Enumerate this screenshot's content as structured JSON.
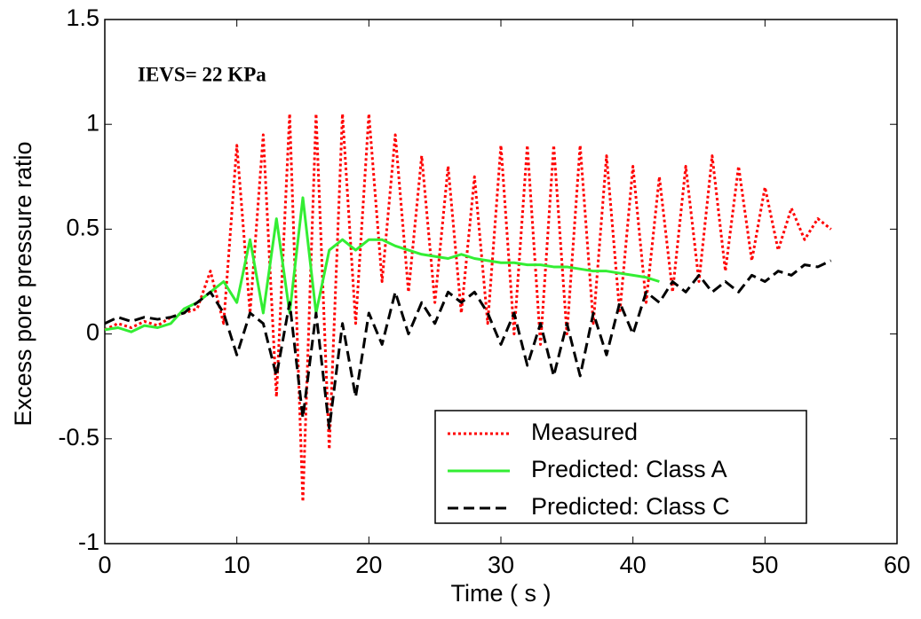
{
  "chart_data": {
    "type": "line",
    "annotation": "IEVS= 22 KPa",
    "x_label": "Time ( s )",
    "y_label": "Excess pore pressure ratio",
    "x": [
      0,
      1,
      2,
      3,
      4,
      5,
      6,
      7,
      8,
      9,
      10,
      11,
      12,
      13,
      14,
      15,
      16,
      17,
      18,
      19,
      20,
      21,
      22,
      23,
      24,
      25,
      26,
      27,
      28,
      29,
      30,
      31,
      32,
      33,
      34,
      35,
      36,
      37,
      38,
      39,
      40,
      41,
      42,
      43,
      44,
      45,
      46,
      47,
      48,
      49,
      50,
      51,
      52,
      53,
      54,
      55
    ],
    "series": [
      {
        "name": "Measured",
        "color": "#ff0000",
        "dash": "3,3",
        "values": [
          0.02,
          0.05,
          0.03,
          0.06,
          0.04,
          0.08,
          0.1,
          0.12,
          0.3,
          0.05,
          0.9,
          0.1,
          0.95,
          -0.3,
          1.05,
          -0.8,
          1.05,
          -0.55,
          1.05,
          0.05,
          1.05,
          0.25,
          0.95,
          0.2,
          0.85,
          0.15,
          0.8,
          0.1,
          0.75,
          0.05,
          0.9,
          0.0,
          0.9,
          -0.05,
          0.9,
          0.0,
          0.9,
          0.05,
          0.85,
          0.1,
          0.8,
          0.15,
          0.75,
          0.2,
          0.8,
          0.25,
          0.85,
          0.3,
          0.8,
          0.35,
          0.7,
          0.4,
          0.6,
          0.45,
          0.55,
          0.5
        ]
      },
      {
        "name": "Predicted: Class A",
        "color": "#33ee33",
        "dash": "none",
        "values": [
          0.02,
          0.03,
          0.01,
          0.04,
          0.03,
          0.05,
          0.12,
          0.15,
          0.2,
          0.25,
          0.15,
          0.45,
          0.1,
          0.55,
          0.1,
          0.65,
          0.1,
          0.4,
          0.45,
          0.4,
          0.45,
          0.45,
          0.42,
          0.4,
          0.38,
          0.37,
          0.36,
          0.38,
          0.36,
          0.35,
          0.34,
          0.34,
          0.33,
          0.33,
          0.32,
          0.32,
          0.31,
          0.3,
          0.3,
          0.29,
          0.28,
          0.27,
          0.25,
          null,
          null,
          null,
          null,
          null,
          null,
          null,
          null,
          null,
          null,
          null,
          null,
          null
        ]
      },
      {
        "name": "Predicted: Class C",
        "color": "#000000",
        "dash": "12,6",
        "values": [
          0.05,
          0.08,
          0.06,
          0.08,
          0.07,
          0.08,
          0.1,
          0.15,
          0.2,
          0.1,
          -0.1,
          0.1,
          0.05,
          -0.2,
          0.15,
          -0.4,
          0.1,
          -0.45,
          0.05,
          -0.3,
          0.1,
          -0.05,
          0.2,
          0.0,
          0.15,
          0.05,
          0.2,
          0.15,
          0.2,
          0.1,
          -0.05,
          0.1,
          -0.15,
          0.05,
          -0.2,
          0.05,
          -0.2,
          0.1,
          -0.1,
          0.15,
          0.0,
          0.2,
          0.15,
          0.25,
          0.2,
          0.28,
          0.2,
          0.25,
          0.2,
          0.28,
          0.25,
          0.3,
          0.28,
          0.33,
          0.32,
          0.35
        ]
      }
    ],
    "xlim": [
      0,
      60
    ],
    "xticks": [
      0,
      10,
      20,
      30,
      40,
      50,
      60
    ],
    "ylim": [
      -1,
      1.5
    ],
    "yticks": [
      -1,
      -0.5,
      0,
      0.5,
      1,
      1.5
    ],
    "grid": false,
    "legend": "lower right"
  }
}
